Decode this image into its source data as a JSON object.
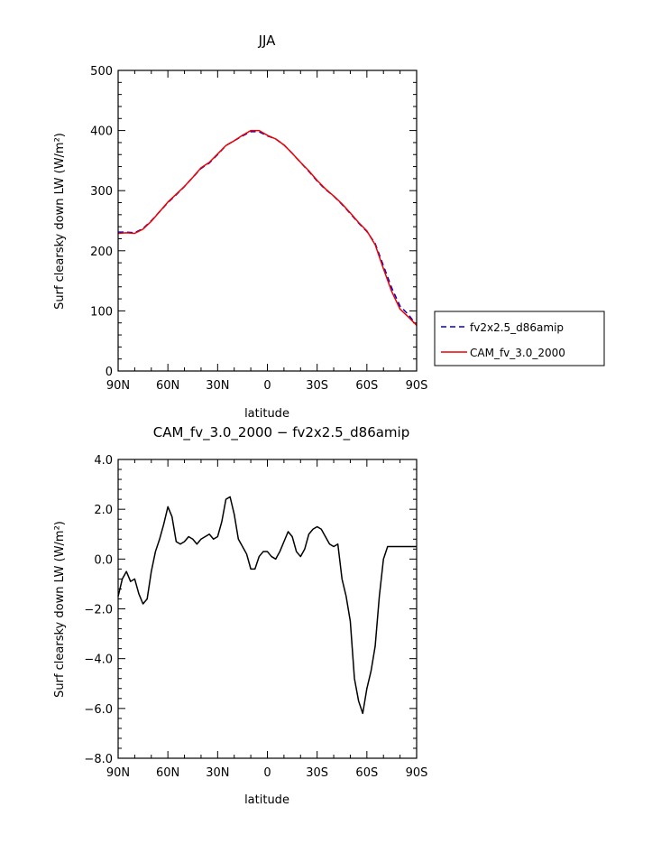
{
  "chart_data": [
    {
      "type": "line",
      "title": "JJA",
      "xlabel": "latitude",
      "ylabel": "Surf clearsky down LW (W/m²)",
      "xlim": [
        90,
        -90
      ],
      "ylim": [
        0,
        500
      ],
      "xticks": [
        90,
        60,
        30,
        0,
        -30,
        -60,
        -90
      ],
      "xtick_labels": [
        "90N",
        "60N",
        "30N",
        "0",
        "30S",
        "60S",
        "90S"
      ],
      "yticks": [
        0,
        100,
        200,
        300,
        400,
        500
      ],
      "ytick_labels": [
        "0",
        "100",
        "200",
        "300",
        "400",
        "500"
      ],
      "legend_position": "right",
      "series": [
        {
          "name": "fv2x2.5_d86amip",
          "color": "#0000cc",
          "dash": "dashed",
          "x": [
            90,
            85,
            80,
            75,
            70,
            65,
            60,
            55,
            50,
            45,
            40,
            35,
            30,
            25,
            20,
            15,
            10,
            5,
            0,
            -5,
            -10,
            -15,
            -20,
            -25,
            -30,
            -35,
            -40,
            -45,
            -50,
            -55,
            -60,
            -65,
            -70,
            -75,
            -80,
            -85,
            -90
          ],
          "y": [
            231,
            231,
            230,
            237,
            250,
            265,
            280,
            293,
            307,
            322,
            337,
            346,
            360,
            375,
            383,
            391,
            398,
            398,
            391,
            386,
            376,
            362,
            347,
            332,
            316,
            302,
            291,
            277,
            262,
            246,
            232,
            212,
            175,
            138,
            108,
            94,
            76
          ]
        },
        {
          "name": "CAM_fv_3.0_2000",
          "color": "#ee0000",
          "dash": "solid",
          "x": [
            90,
            85,
            80,
            75,
            70,
            65,
            60,
            55,
            50,
            45,
            40,
            35,
            30,
            25,
            20,
            15,
            10,
            5,
            0,
            -5,
            -10,
            -15,
            -20,
            -25,
            -30,
            -35,
            -40,
            -45,
            -50,
            -55,
            -60,
            -65,
            -70,
            -75,
            -80,
            -85,
            -90
          ],
          "y": [
            229,
            230,
            229,
            236,
            249,
            265,
            281,
            294,
            307,
            322,
            338,
            347,
            361,
            375,
            383,
            392,
            400,
            400,
            392,
            386,
            376,
            362,
            347,
            333,
            317,
            303,
            291,
            278,
            263,
            247,
            233,
            210,
            170,
            132,
            103,
            90,
            76
          ]
        }
      ]
    },
    {
      "type": "line",
      "title": "CAM_fv_3.0_2000 − fv2x2.5_d86amip",
      "xlabel": "latitude",
      "ylabel": "Surf clearsky down LW (W/m²)",
      "xlim": [
        90,
        -90
      ],
      "ylim": [
        -8,
        4
      ],
      "xticks": [
        90,
        60,
        30,
        0,
        -30,
        -60,
        -90
      ],
      "xtick_labels": [
        "90N",
        "60N",
        "30N",
        "0",
        "30S",
        "60S",
        "90S"
      ],
      "yticks": [
        -8,
        -6,
        -4,
        -2,
        0,
        2,
        4
      ],
      "ytick_labels": [
        "−8.0",
        "−6.0",
        "−4.0",
        "−2.0",
        "0.0",
        "2.0",
        "4.0"
      ],
      "series": [
        {
          "color": "#000000",
          "dash": "solid",
          "x": [
            90,
            87.5,
            85,
            82.5,
            80,
            77.5,
            75,
            72.5,
            70,
            67.5,
            65,
            62.5,
            60,
            57.5,
            55,
            52.5,
            50,
            47.5,
            45,
            42.5,
            40,
            37.5,
            35,
            32.5,
            30,
            27.5,
            25,
            22.5,
            20,
            17.5,
            15,
            12.5,
            10,
            7.5,
            5,
            2.5,
            0,
            -2.5,
            -5,
            -7.5,
            -10,
            -12.5,
            -15,
            -17.5,
            -20,
            -22.5,
            -25,
            -27.5,
            -30,
            -32.5,
            -35,
            -37.5,
            -40,
            -42.5,
            -45,
            -47.5,
            -50,
            -52.5,
            -55,
            -57.5,
            -60,
            -62.5,
            -65,
            -67.5,
            -70,
            -72.5,
            -75,
            -77.5,
            -80,
            -82.5,
            -85,
            -87.5,
            -90
          ],
          "y": [
            -1.5,
            -0.8,
            -0.5,
            -0.9,
            -0.8,
            -1.4,
            -1.8,
            -1.6,
            -0.5,
            0.3,
            0.8,
            1.4,
            2.1,
            1.7,
            0.7,
            0.6,
            0.7,
            0.9,
            0.8,
            0.6,
            0.8,
            0.9,
            1.0,
            0.8,
            0.9,
            1.5,
            2.4,
            2.5,
            1.8,
            0.8,
            0.5,
            0.2,
            -0.4,
            -0.4,
            0.1,
            0.3,
            0.3,
            0.1,
            0.0,
            0.3,
            0.7,
            1.1,
            0.9,
            0.3,
            0.1,
            0.4,
            1.0,
            1.2,
            1.3,
            1.2,
            0.9,
            0.6,
            0.5,
            0.6,
            -0.8,
            -1.5,
            -2.5,
            -4.8,
            -5.7,
            -6.2,
            -5.2,
            -4.5,
            -3.5,
            -1.5,
            0.0,
            0.5,
            0.5,
            0.5,
            0.5,
            0.5,
            0.5,
            0.5,
            0.5
          ]
        }
      ]
    }
  ]
}
